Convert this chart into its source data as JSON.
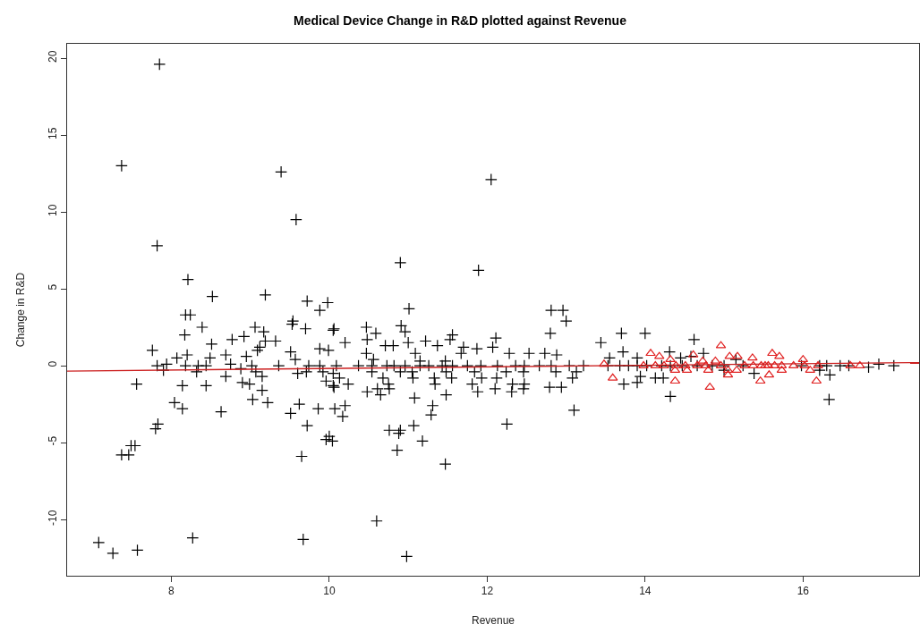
{
  "chart_data": {
    "type": "scatter",
    "title": "Medical Device Change in R&D plotted against Revenue",
    "xlabel": "Revenue",
    "ylabel": "Change in R&D",
    "xlim": [
      6.68,
      17.47
    ],
    "ylim": [
      -13.66,
      20.93
    ],
    "xticks": [
      8,
      10,
      12,
      14,
      16
    ],
    "yticks": [
      -10,
      -5,
      0,
      5,
      10,
      15,
      20
    ],
    "series": [
      {
        "marker": "cross",
        "color": "#000000",
        "x": [
          7.85,
          7.37,
          9.39,
          9.58,
          7.82,
          8.21,
          8.52,
          9.19,
          9.72,
          9.98,
          9.88,
          8.18,
          8.24,
          9.54,
          9.53,
          9.7,
          8.39,
          9.06,
          9.17,
          10.05,
          8.17,
          8.92,
          8.77,
          9.32,
          9.19,
          8.51,
          9.12,
          9.88,
          7.76,
          9.99,
          9.09,
          9.51,
          8.2,
          8.69,
          8.95,
          8.07,
          8.49,
          9.57,
          7.94,
          7.82,
          8.34,
          8.44,
          8.18,
          8.75,
          9.02,
          9.36,
          9.74,
          9.88,
          8.88,
          7.9,
          8.32,
          9.07,
          9.6,
          9.71,
          9.92,
          10.05,
          9.15,
          8.69,
          9.96,
          8.9,
          8.99,
          7.56,
          8.44,
          8.14,
          10.05,
          9.15,
          9.03,
          8.04,
          9.22,
          9.62,
          8.14,
          9.86,
          10.07,
          8.63,
          9.51,
          9.72,
          7.83,
          7.8,
          7.49,
          7.54,
          10.0,
          9.96,
          10.04,
          7.37,
          7.46,
          9.65,
          7.08,
          7.26,
          7.57,
          8.27,
          9.67,
          12.05,
          10.9,
          11.89,
          11.01,
          12.81,
          12.96,
          13.0,
          10.06,
          10.47,
          10.59,
          10.91,
          10.96,
          12.8,
          13.7,
          10.48,
          11.56,
          11.53,
          11.22,
          12.11,
          13.44,
          10.2,
          10.71,
          10.81,
          11.0,
          11.37,
          11.7,
          11.87,
          12.07,
          13.72,
          10.47,
          11.09,
          11.67,
          12.28,
          12.53,
          12.73,
          12.88,
          10.56,
          11.15,
          11.47,
          13.55,
          10.09,
          10.37,
          10.54,
          10.73,
          10.82,
          10.96,
          11.15,
          11.26,
          11.43,
          11.56,
          11.75,
          11.92,
          12.13,
          12.36,
          12.47,
          12.66,
          12.81,
          13.04,
          13.22,
          13.53,
          13.68,
          10.54,
          10.9,
          11.05,
          11.48,
          11.84,
          12.24,
          12.46,
          12.87,
          13.13,
          10.13,
          10.68,
          11.06,
          11.33,
          11.55,
          11.93,
          12.12,
          13.08,
          10.24,
          10.75,
          11.34,
          11.81,
          12.32,
          12.47,
          13.73,
          10.06,
          12.79,
          12.94,
          10.61,
          10.76,
          12.1,
          12.46,
          10.48,
          11.88,
          12.31,
          10.65,
          11.48,
          11.08,
          10.2,
          11.31,
          13.1,
          11.29,
          10.17,
          12.25,
          11.07,
          10.76,
          10.9,
          10.88,
          11.18,
          10.86,
          11.47,
          10.6,
          10.98,
          14.0,
          14.62,
          14.31,
          14.74,
          13.9,
          14.45,
          14.58,
          15.15,
          13.79,
          13.9,
          14.02,
          14.21,
          14.32,
          14.47,
          14.66,
          14.85,
          15.0,
          15.24,
          15.98,
          16.21,
          16.3,
          16.47,
          16.58,
          16.83,
          16.96,
          17.15,
          15.0,
          16.21,
          16.34,
          15.38,
          14.13,
          14.23,
          13.94,
          13.9,
          14.32,
          16.33
        ],
        "values": [
          19.6,
          13.0,
          12.6,
          9.5,
          7.8,
          5.6,
          4.5,
          4.6,
          4.2,
          4.1,
          3.6,
          3.3,
          3.3,
          2.9,
          2.7,
          2.4,
          2.5,
          2.5,
          2.2,
          2.3,
          2.0,
          1.9,
          1.7,
          1.6,
          1.6,
          1.4,
          1.2,
          1.1,
          1.0,
          1.0,
          1.0,
          0.9,
          0.7,
          0.7,
          0.6,
          0.5,
          0.5,
          0.4,
          0.1,
          0.0,
          0.0,
          0.0,
          0.0,
          0.1,
          0.0,
          0.0,
          0.0,
          0.0,
          -0.2,
          -0.3,
          -0.4,
          -0.4,
          -0.5,
          -0.4,
          -0.4,
          -0.5,
          -0.7,
          -0.7,
          -1.0,
          -1.1,
          -1.2,
          -1.2,
          -1.3,
          -1.3,
          -1.3,
          -1.6,
          -2.2,
          -2.4,
          -2.4,
          -2.5,
          -2.8,
          -2.8,
          -2.8,
          -3.0,
          -3.1,
          -3.9,
          -3.8,
          -4.1,
          -5.2,
          -5.2,
          -4.6,
          -4.8,
          -4.9,
          -5.8,
          -5.8,
          -5.9,
          -11.5,
          -12.2,
          -12.0,
          -11.2,
          -11.3,
          12.1,
          6.7,
          6.2,
          3.7,
          3.6,
          3.6,
          2.9,
          2.4,
          2.5,
          2.1,
          2.6,
          2.2,
          2.1,
          2.1,
          1.7,
          2.0,
          1.7,
          1.6,
          1.8,
          1.5,
          1.5,
          1.3,
          1.3,
          1.5,
          1.3,
          1.2,
          1.1,
          1.2,
          0.9,
          0.8,
          0.8,
          0.8,
          0.8,
          0.8,
          0.8,
          0.7,
          0.4,
          0.3,
          0.3,
          0.5,
          0.0,
          0.0,
          0.0,
          0.0,
          0.0,
          0.0,
          0.0,
          0.0,
          0.0,
          0.0,
          0.0,
          0.0,
          0.0,
          0.0,
          0.0,
          0.0,
          0.0,
          0.0,
          0.0,
          0.0,
          0.0,
          -0.4,
          -0.4,
          -0.4,
          -0.4,
          -0.4,
          -0.4,
          -0.4,
          -0.4,
          -0.4,
          -0.8,
          -0.8,
          -0.8,
          -0.8,
          -0.8,
          -0.8,
          -0.8,
          -0.8,
          -1.2,
          -1.2,
          -1.2,
          -1.2,
          -1.2,
          -1.2,
          -1.2,
          -1.4,
          -1.4,
          -1.4,
          -1.5,
          -1.5,
          -1.5,
          -1.5,
          -1.7,
          -1.7,
          -1.7,
          -1.9,
          -1.9,
          -2.1,
          -2.6,
          -2.6,
          -2.9,
          -3.2,
          -3.3,
          -3.8,
          -3.9,
          -4.2,
          -4.2,
          -4.4,
          -4.9,
          -5.5,
          -6.4,
          -10.1,
          -12.4,
          2.1,
          1.7,
          0.9,
          0.8,
          0.5,
          0.5,
          0.6,
          0.4,
          0.0,
          0.0,
          0.0,
          0.0,
          0.0,
          0.0,
          0.0,
          0.0,
          0.0,
          0.0,
          0.0,
          0.0,
          0.0,
          0.0,
          0.0,
          -0.1,
          0.1,
          0.0,
          -0.3,
          -0.3,
          -0.6,
          -0.5,
          -0.8,
          -0.8,
          -0.7,
          -1.1,
          -2.0,
          -2.2
        ]
      },
      {
        "marker": "triangle",
        "color": "#e02020",
        "x": [
          14.96,
          14.07,
          14.61,
          14.18,
          14.32,
          15.07,
          15.17,
          15.36,
          15.61,
          15.7,
          16.0,
          14.89,
          14.73,
          13.98,
          14.13,
          14.24,
          14.39,
          14.51,
          14.66,
          14.77,
          14.96,
          15.26,
          15.37,
          15.47,
          15.52,
          15.56,
          15.64,
          15.73,
          15.88,
          16.02,
          16.19,
          16.6,
          16.72,
          14.38,
          14.53,
          14.8,
          15.05,
          15.16,
          15.73,
          16.09,
          15.05,
          15.57,
          14.38,
          15.46,
          16.17,
          14.82,
          13.48,
          13.59
        ],
        "values": [
          1.3,
          0.8,
          0.7,
          0.6,
          0.4,
          0.6,
          0.6,
          0.5,
          0.8,
          0.6,
          0.4,
          0.3,
          0.3,
          0.0,
          0.0,
          0.0,
          0.0,
          0.0,
          0.0,
          0.0,
          0.0,
          0.0,
          0.0,
          0.0,
          0.0,
          0.0,
          0.0,
          0.0,
          0.0,
          0.0,
          0.0,
          0.0,
          0.0,
          -0.3,
          -0.3,
          -0.3,
          -0.3,
          -0.3,
          -0.3,
          -0.3,
          -0.6,
          -0.6,
          -1.0,
          -1.0,
          -1.0,
          -1.4,
          0.1,
          -0.8
        ]
      },
      {
        "type": "line",
        "marker": "none",
        "line_style": "solid",
        "color": "#cc2020",
        "x": [
          6.68,
          17.47
        ],
        "values": [
          -0.35,
          0.2
        ]
      }
    ]
  }
}
